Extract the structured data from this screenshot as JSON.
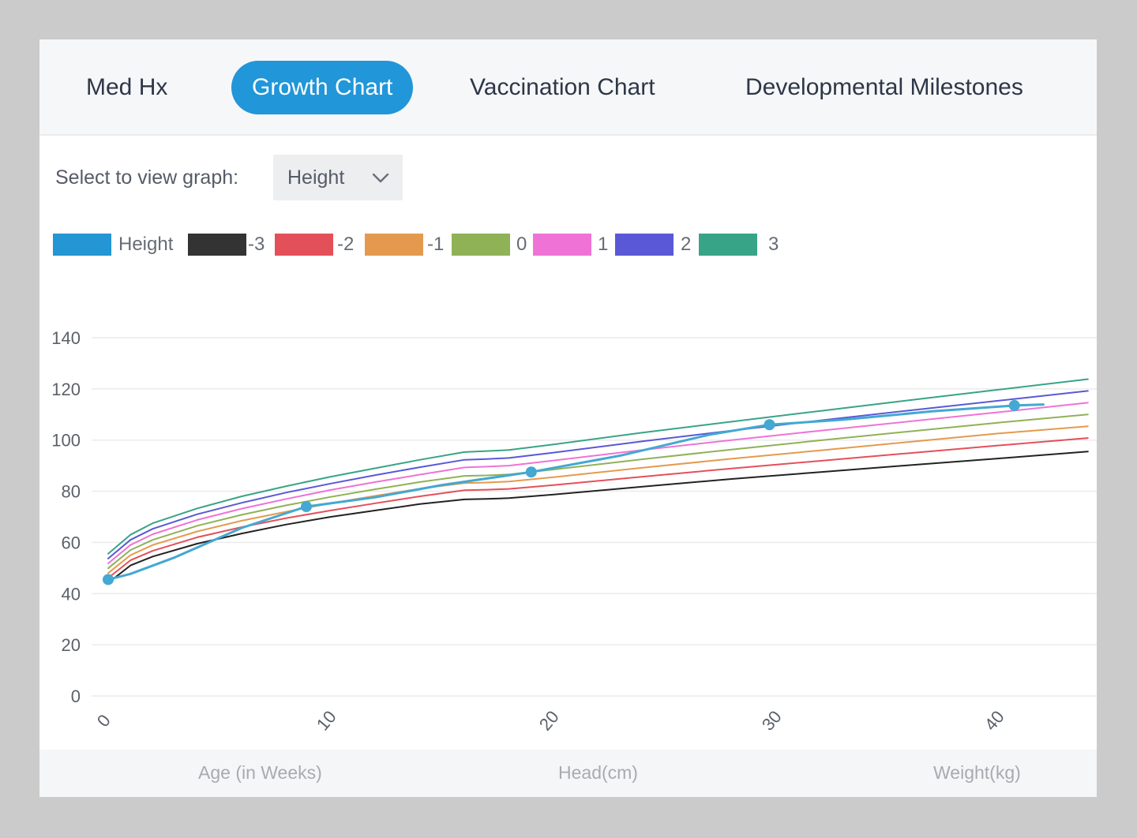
{
  "tabs": [
    {
      "label": "Med Hx",
      "active": false
    },
    {
      "label": "Growth Chart",
      "active": true
    },
    {
      "label": "Vaccination Chart",
      "active": false
    },
    {
      "label": "Developmental Milestones",
      "active": false
    }
  ],
  "graph_select": {
    "label": "Select to view graph:",
    "value": "Height",
    "icon": "chevron-down-icon"
  },
  "legend": [
    {
      "label": "Height",
      "color": "#2396d3"
    },
    {
      "label": "-3",
      "color": "#333333"
    },
    {
      "label": "-2",
      "color": "#e4505a"
    },
    {
      "label": "-1",
      "color": "#e49a4e"
    },
    {
      "label": "0",
      "color": "#8fb256"
    },
    {
      "label": "1",
      "color": "#ef73d6"
    },
    {
      "label": "2",
      "color": "#5a58d6"
    },
    {
      "label": "3",
      "color": "#38a487"
    }
  ],
  "chart_data": {
    "type": "line",
    "grid": "horizontal",
    "ylim": [
      0,
      140
    ],
    "xlim": [
      0,
      44
    ],
    "y_ticks": [
      0,
      20,
      40,
      60,
      80,
      100,
      120,
      140
    ],
    "x_ticks": [
      0,
      10,
      20,
      30,
      40
    ],
    "reference_x": [
      0,
      1,
      2,
      4,
      6,
      8,
      10,
      12,
      14,
      16,
      17,
      18,
      20,
      24,
      28,
      32,
      36,
      40,
      44
    ],
    "series": [
      {
        "name": "-3",
        "color": "#222222",
        "values": [
          44.2,
          51,
          54.5,
          59.5,
          63.5,
          67,
          70,
          72.5,
          75,
          76.8,
          77,
          77.3,
          78.7,
          81.8,
          84.8,
          87.5,
          90.2,
          92.8,
          95.5
        ]
      },
      {
        "name": "-2",
        "color": "#e4505a",
        "values": [
          46.1,
          53,
          56.7,
          62,
          66,
          69.5,
          72.5,
          75.3,
          78,
          80.4,
          80.6,
          80.9,
          82.4,
          85.7,
          88.9,
          91.9,
          94.9,
          97.9,
          100.8
        ]
      },
      {
        "name": "-1",
        "color": "#e49a4e",
        "values": [
          48,
          55,
          59,
          64.3,
          68.5,
          72,
          75.3,
          78.2,
          81,
          83.2,
          83.4,
          83.8,
          85.5,
          89.2,
          92.7,
          96,
          99.3,
          102.6,
          105.4
        ]
      },
      {
        "name": "0",
        "color": "#8fb256",
        "values": [
          49.9,
          57,
          61,
          66.5,
          70.8,
          74.5,
          77.8,
          80.8,
          83.6,
          86,
          86.2,
          86.6,
          88.5,
          92.5,
          96.3,
          99.9,
          103.4,
          106.8,
          110
        ]
      },
      {
        "name": "1",
        "color": "#ef73d6",
        "values": [
          51.8,
          59,
          63.2,
          68.8,
          73.2,
          77,
          80.5,
          83.6,
          86.5,
          89.3,
          89.6,
          90,
          92,
          96.1,
          100,
          103.7,
          107.3,
          110.9,
          114.6
        ]
      },
      {
        "name": "2",
        "color": "#5a58d6",
        "values": [
          53.7,
          61,
          65.3,
          71,
          75.5,
          79.5,
          83,
          86.3,
          89.4,
          92.3,
          92.6,
          93,
          95.1,
          99.5,
          103.7,
          107.7,
          111.6,
          115.4,
          119.2
        ]
      },
      {
        "name": "3",
        "color": "#38a487",
        "values": [
          55.6,
          63,
          67.5,
          73.3,
          78,
          82,
          85.7,
          89,
          92.3,
          95.3,
          95.7,
          96.1,
          98.3,
          102.9,
          107.2,
          111.4,
          115.6,
          119.7,
          123.8
        ]
      }
    ],
    "measured": {
      "name": "Height",
      "color": "#43a8d2",
      "x": [
        0,
        8.9,
        19,
        29.7,
        40.7
      ],
      "values": [
        45.5,
        74,
        87.5,
        106,
        113.5
      ],
      "line_x": [
        0,
        1,
        3,
        6,
        8.9,
        12,
        15,
        19,
        23,
        27,
        29.7,
        33,
        37,
        40.7,
        42
      ]
    }
  },
  "footer": {
    "age_label": "Age (in Weeks)",
    "head_label": "Head(cm)",
    "weight_label": "Weight(kg)"
  }
}
